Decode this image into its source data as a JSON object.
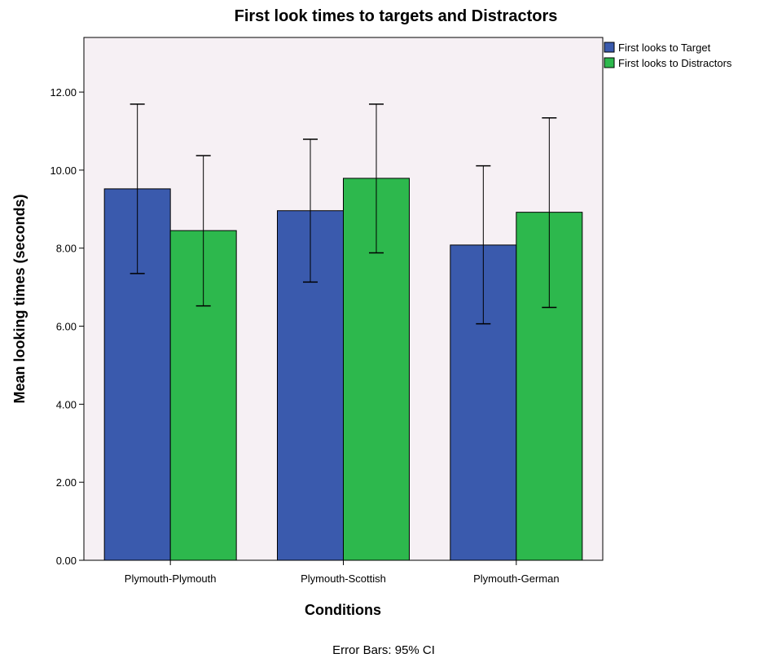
{
  "chart_data": {
    "type": "bar",
    "title": "First look times to targets and Distractors",
    "xlabel": "Conditions",
    "ylabel": "Mean looking times (seconds)",
    "categories": [
      "Plymouth-Plymouth",
      "Plymouth-Scottish",
      "Plymouth-German"
    ],
    "ylim": [
      0,
      13.4
    ],
    "yticks": [
      "0.00",
      "2.00",
      "4.00",
      "6.00",
      "8.00",
      "10.00",
      "12.00"
    ],
    "ytick_values": [
      0,
      2,
      4,
      6,
      8,
      10,
      12
    ],
    "series": [
      {
        "name": "First looks to Target",
        "color": "#3a5aad",
        "values": [
          9.52,
          8.96,
          8.08
        ],
        "ci_low": [
          7.35,
          7.13,
          6.06
        ],
        "ci_high": [
          11.69,
          10.79,
          10.11
        ]
      },
      {
        "name": "First looks to Distractors",
        "color": "#2db84d",
        "values": [
          8.45,
          9.79,
          8.92
        ],
        "ci_low": [
          6.52,
          7.88,
          6.48
        ],
        "ci_high": [
          10.37,
          11.69,
          11.34
        ]
      }
    ],
    "plot_background": "#f6f0f4",
    "grid": false,
    "legend_position": "top-right outside",
    "note": "Error Bars: 95% CI"
  }
}
